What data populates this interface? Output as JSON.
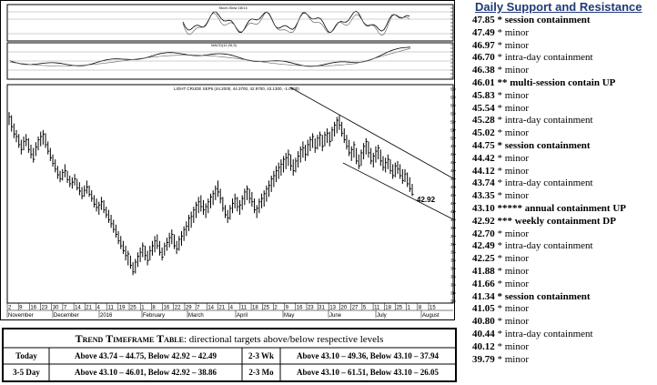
{
  "header": {
    "title": "Daily Support and Resistance",
    "accent": "#1f3a75"
  },
  "levels": [
    {
      "price": "47.85",
      "marks": "*",
      "label": "session containment",
      "strong": true
    },
    {
      "price": "47.49",
      "marks": "*",
      "label": "minor",
      "strong": false
    },
    {
      "price": "46.97",
      "marks": "*",
      "label": "minor",
      "strong": false
    },
    {
      "price": "46.70",
      "marks": "*",
      "label": "intra-day containment",
      "strong": false
    },
    {
      "price": "46.38",
      "marks": "*",
      "label": "minor",
      "strong": false
    },
    {
      "price": "46.01",
      "marks": "**",
      "label": "multi-session contain UP",
      "strong": true
    },
    {
      "price": "45.83",
      "marks": "*",
      "label": "minor",
      "strong": false
    },
    {
      "price": "45.54",
      "marks": "*",
      "label": "minor",
      "strong": false
    },
    {
      "price": "45.28",
      "marks": "*",
      "label": "intra-day containment",
      "strong": false
    },
    {
      "price": "45.02",
      "marks": "*",
      "label": "minor",
      "strong": false
    },
    {
      "price": "44.75",
      "marks": "*",
      "label": "session containment",
      "strong": true
    },
    {
      "price": "44.42",
      "marks": "*",
      "label": "minor",
      "strong": false
    },
    {
      "price": "44.12",
      "marks": "*",
      "label": "minor",
      "strong": false
    },
    {
      "price": "43.74",
      "marks": "*",
      "label": "intra-day containment",
      "strong": false
    },
    {
      "price": "43.35",
      "marks": "*",
      "label": "minor",
      "strong": false
    },
    {
      "price": "43.10",
      "marks": "*****",
      "label": "annual containment UP",
      "strong": true
    },
    {
      "price": "42.92",
      "marks": "***",
      "label": "weekly containment DP",
      "strong": true
    },
    {
      "price": "42.70",
      "marks": "*",
      "label": "minor",
      "strong": false
    },
    {
      "price": "42.49",
      "marks": "*",
      "label": "intra-day containment",
      "strong": false
    },
    {
      "price": "42.25",
      "marks": "*",
      "label": "minor",
      "strong": false
    },
    {
      "price": "41.88",
      "marks": "*",
      "label": "minor",
      "strong": false
    },
    {
      "price": "41.66",
      "marks": "*",
      "label": "minor",
      "strong": false
    },
    {
      "price": "41.34",
      "marks": "*",
      "label": "session containment",
      "strong": true
    },
    {
      "price": "41.05",
      "marks": "*",
      "label": "minor",
      "strong": false
    },
    {
      "price": "40.80",
      "marks": "*",
      "label": "minor",
      "strong": false
    },
    {
      "price": "40.44",
      "marks": "*",
      "label": "intra-day containment",
      "strong": false
    },
    {
      "price": "40.12",
      "marks": "*",
      "label": "minor",
      "strong": false
    },
    {
      "price": "39.79",
      "marks": "*",
      "label": "minor",
      "strong": false
    }
  ],
  "timeframe": {
    "title_bold": "Trend Timeframe Table",
    "title_rest": ": directional targets above/below respective levels",
    "rows": [
      {
        "label": "Today",
        "targets": "Above 43.74 – 44.75, Below 42.92 – 42.49",
        "label2": "2-3 Wk",
        "targets2": "Above 43.10 – 49.36, Below 43.10 – 37.94"
      },
      {
        "label": "3-5 Day",
        "targets": "Above 43.10 – 46.01, Below 42.92 – 38.86",
        "label2": "2-3 Mo",
        "targets2": "Above 43.10 – 61.51, Below 43.10 – 26.05"
      }
    ]
  },
  "chart": {
    "stoch_label": "Stoch-Slow 18/14",
    "macd_label": "MACD(12,26,9)",
    "price_label": "LIGHT CRUDE SEP6 (44.2000, 44.3700, 42.9700, 43.1300, -1.0800)",
    "last_price_label": "42.92",
    "y_labels": [
      "56",
      "55",
      "54",
      "53",
      "52",
      "51",
      "50",
      "49",
      "48",
      "47",
      "46",
      "45",
      "44",
      "43",
      "42",
      "41",
      "40",
      "39",
      "38",
      "37",
      "36",
      "35",
      "34",
      "33",
      "32",
      "31",
      "30"
    ],
    "x_day_labels": [
      "2",
      "9",
      "16",
      "23",
      "30",
      "7",
      "14",
      "21",
      "4",
      "11",
      "19",
      "25",
      "1",
      "8",
      "16",
      "22",
      "29",
      "7",
      "14",
      "21",
      "4",
      "11",
      "18",
      "25",
      "2",
      "9",
      "16",
      "23",
      "31",
      "13",
      "20",
      "27",
      "5",
      "11",
      "18",
      "25",
      "1",
      "8",
      "15"
    ],
    "month_labels": [
      "November",
      "December",
      "2016",
      "February",
      "March",
      "April",
      "May",
      "June",
      "July",
      "August"
    ],
    "bars": [
      [
        51.6,
        53.2,
        52.6
      ],
      [
        50.8,
        52.8,
        51.4
      ],
      [
        50.0,
        51.8,
        50.5
      ],
      [
        49.5,
        51.0,
        50.2
      ],
      [
        48.8,
        50.5,
        49.2
      ],
      [
        48.0,
        49.8,
        48.6
      ],
      [
        48.5,
        50.2,
        49.6
      ],
      [
        49.0,
        50.5,
        49.8
      ],
      [
        48.2,
        50.0,
        48.6
      ],
      [
        47.5,
        49.2,
        48.0
      ],
      [
        47.0,
        48.8,
        47.4
      ],
      [
        47.8,
        49.5,
        48.9
      ],
      [
        48.5,
        50.2,
        49.8
      ],
      [
        49.0,
        50.8,
        50.2
      ],
      [
        49.2,
        51.0,
        50.5
      ],
      [
        48.8,
        50.6,
        49.2
      ],
      [
        48.0,
        49.6,
        48.4
      ],
      [
        47.2,
        48.8,
        47.6
      ],
      [
        46.5,
        48.0,
        46.9
      ],
      [
        45.8,
        47.4,
        46.2
      ],
      [
        45.0,
        46.6,
        45.5
      ],
      [
        44.6,
        46.0,
        45.0
      ],
      [
        44.8,
        46.2,
        45.8
      ],
      [
        45.2,
        46.8,
        46.0
      ],
      [
        44.5,
        46.0,
        44.9
      ],
      [
        44.0,
        45.4,
        44.4
      ],
      [
        43.8,
        45.2,
        44.6
      ],
      [
        44.2,
        45.6,
        45.0
      ],
      [
        43.6,
        45.0,
        43.9
      ],
      [
        43.0,
        44.6,
        43.5
      ],
      [
        42.5,
        44.0,
        42.9
      ],
      [
        42.8,
        44.2,
        43.6
      ],
      [
        43.2,
        44.8,
        44.0
      ],
      [
        42.8,
        44.2,
        43.1
      ],
      [
        42.2,
        43.6,
        42.6
      ],
      [
        41.5,
        43.0,
        41.9
      ],
      [
        41.0,
        42.6,
        41.5
      ],
      [
        40.6,
        42.2,
        41.8
      ],
      [
        41.2,
        42.8,
        42.2
      ],
      [
        40.8,
        42.4,
        41.2
      ],
      [
        40.2,
        41.6,
        40.6
      ],
      [
        39.6,
        41.2,
        40.0
      ],
      [
        39.0,
        40.6,
        39.5
      ],
      [
        38.4,
        40.0,
        38.8
      ],
      [
        37.8,
        39.4,
        38.2
      ],
      [
        37.0,
        38.6,
        37.4
      ],
      [
        36.4,
        38.0,
        36.8
      ],
      [
        35.8,
        37.4,
        36.2
      ],
      [
        35.0,
        36.8,
        35.6
      ],
      [
        34.4,
        36.2,
        35.8
      ],
      [
        34.0,
        35.6,
        34.4
      ],
      [
        33.2,
        34.8,
        33.6
      ],
      [
        33.4,
        35.2,
        34.8
      ],
      [
        34.2,
        36.0,
        35.5
      ],
      [
        34.8,
        36.6,
        36.0
      ],
      [
        35.4,
        37.2,
        36.8
      ],
      [
        35.0,
        36.8,
        35.6
      ],
      [
        34.4,
        36.2,
        35.0
      ],
      [
        35.0,
        36.8,
        36.2
      ],
      [
        35.6,
        37.4,
        36.8
      ],
      [
        36.0,
        38.0,
        37.4
      ],
      [
        36.4,
        38.2,
        36.8
      ],
      [
        35.6,
        37.4,
        36.0
      ],
      [
        35.0,
        36.6,
        35.4
      ],
      [
        35.6,
        37.2,
        36.8
      ],
      [
        36.2,
        37.8,
        37.2
      ],
      [
        36.6,
        38.4,
        37.8
      ],
      [
        37.0,
        38.8,
        38.2
      ],
      [
        36.4,
        38.2,
        36.8
      ],
      [
        35.8,
        37.4,
        36.4
      ],
      [
        36.2,
        38.0,
        37.6
      ],
      [
        36.8,
        38.6,
        38.0
      ],
      [
        37.4,
        39.2,
        38.8
      ],
      [
        38.0,
        39.8,
        39.2
      ],
      [
        38.6,
        40.6,
        40.2
      ],
      [
        39.0,
        41.0,
        40.4
      ],
      [
        39.6,
        41.6,
        41.2
      ],
      [
        40.2,
        42.2,
        41.8
      ],
      [
        40.8,
        42.8,
        42.2
      ],
      [
        41.0,
        43.0,
        41.6
      ],
      [
        40.6,
        42.4,
        41.2
      ],
      [
        40.2,
        42.0,
        41.6
      ],
      [
        40.8,
        42.6,
        42.2
      ],
      [
        41.4,
        43.2,
        42.8
      ],
      [
        41.8,
        43.6,
        43.2
      ],
      [
        42.4,
        44.2,
        43.8
      ],
      [
        42.8,
        44.8,
        43.4
      ],
      [
        42.0,
        43.8,
        42.6
      ],
      [
        41.0,
        42.8,
        41.4
      ],
      [
        40.2,
        41.8,
        40.6
      ],
      [
        39.6,
        41.2,
        40.2
      ],
      [
        40.0,
        41.8,
        41.4
      ],
      [
        40.8,
        42.6,
        42.0
      ],
      [
        41.4,
        43.2,
        42.6
      ],
      [
        41.0,
        42.8,
        41.6
      ],
      [
        40.6,
        42.4,
        41.8
      ],
      [
        41.2,
        43.0,
        42.6
      ],
      [
        41.8,
        43.8,
        43.4
      ],
      [
        42.4,
        44.2,
        43.8
      ],
      [
        42.0,
        43.8,
        42.6
      ],
      [
        41.6,
        43.4,
        42.2
      ],
      [
        40.8,
        42.6,
        41.2
      ],
      [
        40.2,
        41.8,
        41.4
      ],
      [
        40.8,
        42.6,
        42.2
      ],
      [
        41.4,
        43.2,
        42.6
      ],
      [
        41.6,
        43.6,
        43.2
      ],
      [
        42.2,
        44.2,
        43.8
      ],
      [
        42.8,
        44.8,
        44.2
      ],
      [
        43.4,
        45.4,
        45.0
      ],
      [
        44.0,
        46.0,
        45.4
      ],
      [
        44.6,
        46.6,
        46.0
      ],
      [
        45.0,
        47.0,
        46.4
      ],
      [
        45.4,
        47.4,
        46.8
      ],
      [
        45.8,
        47.8,
        47.4
      ],
      [
        46.2,
        48.2,
        47.6
      ],
      [
        46.6,
        48.6,
        48.0
      ],
      [
        46.0,
        48.0,
        46.6
      ],
      [
        45.4,
        47.4,
        46.0
      ],
      [
        45.8,
        47.6,
        47.2
      ],
      [
        46.4,
        48.4,
        47.8
      ],
      [
        47.0,
        49.0,
        48.6
      ],
      [
        47.6,
        49.6,
        48.8
      ],
      [
        47.2,
        49.2,
        48.0
      ],
      [
        47.8,
        49.8,
        49.2
      ],
      [
        48.4,
        50.2,
        49.8
      ],
      [
        48.8,
        50.6,
        50.2
      ],
      [
        48.2,
        50.0,
        48.8
      ],
      [
        48.6,
        50.4,
        50.0
      ],
      [
        49.0,
        50.8,
        50.4
      ],
      [
        48.4,
        50.4,
        49.0
      ],
      [
        49.0,
        50.8,
        50.4
      ],
      [
        49.4,
        51.2,
        50.6
      ],
      [
        49.0,
        50.8,
        49.6
      ],
      [
        49.6,
        51.4,
        51.0
      ],
      [
        50.2,
        52.0,
        51.6
      ],
      [
        50.6,
        52.6,
        52.2
      ],
      [
        51.0,
        52.8,
        51.6
      ],
      [
        50.2,
        52.0,
        50.6
      ],
      [
        49.4,
        51.2,
        49.8
      ],
      [
        48.6,
        50.4,
        49.0
      ],
      [
        47.8,
        49.8,
        48.2
      ],
      [
        47.2,
        49.0,
        48.6
      ],
      [
        47.6,
        49.6,
        49.2
      ],
      [
        46.8,
        48.8,
        47.2
      ],
      [
        46.2,
        48.0,
        46.6
      ],
      [
        46.6,
        48.6,
        48.2
      ],
      [
        47.4,
        49.4,
        49.0
      ],
      [
        48.0,
        50.0,
        49.6
      ],
      [
        47.6,
        49.6,
        48.2
      ],
      [
        46.8,
        48.8,
        47.2
      ],
      [
        46.4,
        48.2,
        47.8
      ],
      [
        47.0,
        49.0,
        48.4
      ],
      [
        47.4,
        49.2,
        48.8
      ],
      [
        46.6,
        48.6,
        47.2
      ],
      [
        46.0,
        47.8,
        46.4
      ],
      [
        45.8,
        47.6,
        47.0
      ],
      [
        46.2,
        48.0,
        47.4
      ],
      [
        45.6,
        47.4,
        46.0
      ],
      [
        45.0,
        46.8,
        45.4
      ],
      [
        45.2,
        47.0,
        46.6
      ],
      [
        45.6,
        47.2,
        46.2
      ],
      [
        45.0,
        46.8,
        45.4
      ],
      [
        44.4,
        46.2,
        44.8
      ],
      [
        44.6,
        46.2,
        45.6
      ],
      [
        44.0,
        45.8,
        44.4
      ],
      [
        43.4,
        45.2,
        43.8
      ],
      [
        42.9,
        44.4,
        43.1
      ]
    ]
  }
}
